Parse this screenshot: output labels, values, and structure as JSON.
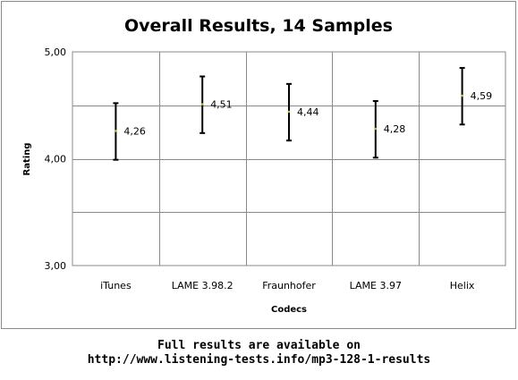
{
  "chart_data": {
    "type": "scatter",
    "title": "Overall Results, 14 Samples",
    "xlabel": "Codecs",
    "ylabel": "Rating",
    "ylim": [
      3.0,
      5.0
    ],
    "yticks": [
      "3,00",
      "4,00",
      "5,00"
    ],
    "grid": true,
    "error_bars": true,
    "categories": [
      "iTunes",
      "LAME 3.98.2",
      "Fraunhofer",
      "LAME 3.97",
      "Helix"
    ],
    "values": [
      4.26,
      4.51,
      4.44,
      4.28,
      4.59
    ],
    "value_labels": [
      "4,26",
      "4,51",
      "4,44",
      "4,28",
      "4,59"
    ],
    "error_low": [
      3.99,
      4.24,
      4.17,
      4.01,
      4.32
    ],
    "error_high": [
      4.52,
      4.77,
      4.7,
      4.54,
      4.85
    ]
  },
  "footer": {
    "line1": "Full results are available on",
    "line2": "http://www.listening-tests.info/mp3-128-1-results"
  }
}
